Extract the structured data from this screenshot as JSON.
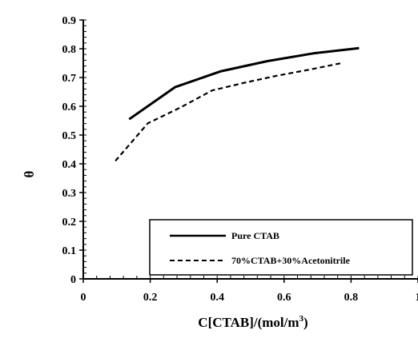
{
  "chart_data": {
    "type": "line",
    "xlabel": "C[CTAB]/(mol/m",
    "xlabel_sup": "3",
    "xlabel_suffix": ")",
    "ylabel": "θ",
    "xlim": [
      0,
      1
    ],
    "ylim": [
      0,
      0.9
    ],
    "x_ticks": [
      0,
      0.2,
      0.4,
      0.6,
      0.8,
      1
    ],
    "x_tick_labels": [
      "0",
      "0.2",
      "0.4",
      "0.6",
      "0.8",
      "1"
    ],
    "y_ticks": [
      0,
      0.1,
      0.2,
      0.3,
      0.4,
      0.5,
      0.6,
      0.7,
      0.8,
      0.9
    ],
    "y_tick_labels": [
      "0",
      "0.1",
      "0.2",
      "0.3",
      "0.4",
      "0.5",
      "0.6",
      "0.7",
      "0.8",
      "0.9"
    ],
    "grid": false,
    "legend_position": "bottom-right",
    "series": [
      {
        "name": "Pure CTAB",
        "style": "solid",
        "color": "#000000",
        "x": [
          0.137,
          0.275,
          0.412,
          0.55,
          0.687,
          0.824
        ],
        "y": [
          0.555,
          0.667,
          0.722,
          0.757,
          0.784,
          0.802
        ]
      },
      {
        "name": "70%CTAB+30%Acetonitrile",
        "style": "dashed",
        "color": "#000000",
        "x": [
          0.096,
          0.193,
          0.289,
          0.385,
          0.482,
          0.578,
          0.674,
          0.771
        ],
        "y": [
          0.41,
          0.541,
          0.595,
          0.655,
          0.682,
          0.706,
          0.727,
          0.75
        ]
      }
    ]
  }
}
